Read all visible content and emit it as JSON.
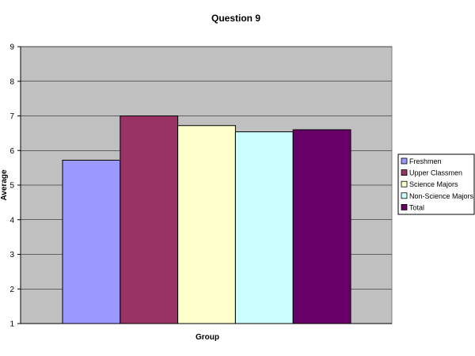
{
  "chart_data": {
    "type": "bar",
    "title": "Question 9",
    "xlabel": "Group",
    "ylabel": "Average",
    "ylim": [
      1,
      9
    ],
    "yticks": [
      1,
      2,
      3,
      4,
      5,
      6,
      7,
      8,
      9
    ],
    "grid": true,
    "legend_position": "right",
    "plot_background": "#c0c0c0",
    "series": [
      {
        "name": "Freshmen",
        "values": [
          5.72
        ],
        "color": "#9999ff"
      },
      {
        "name": "Upper Classmen",
        "values": [
          7.0
        ],
        "color": "#993366"
      },
      {
        "name": "Science Majors",
        "values": [
          6.72
        ],
        "color": "#ffffcc"
      },
      {
        "name": "Non-Science Majors",
        "values": [
          6.54
        ],
        "color": "#ccffff"
      },
      {
        "name": "Total",
        "values": [
          6.6
        ],
        "color": "#660066"
      }
    ]
  }
}
